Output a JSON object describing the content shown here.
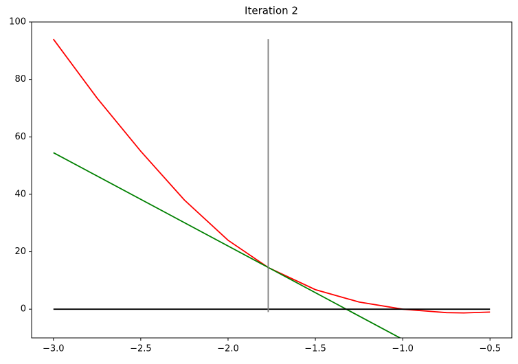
{
  "chart_data": {
    "type": "line",
    "title": "Iteration 2",
    "series": [
      {
        "color": "#ff0000",
        "x": [
          -3.0,
          -2.75,
          -2.5,
          -2.25,
          -2.0,
          -1.77,
          -1.5,
          -1.25,
          -1.0,
          -0.75,
          -0.65,
          -0.5
        ],
        "values": [
          94,
          73.5,
          55,
          38,
          24,
          14.5,
          6.8,
          2.5,
          0,
          -1.2,
          -1.3,
          -1
        ]
      },
      {
        "color": "#008000",
        "x": [
          -3.0,
          -1.0
        ],
        "values": [
          54.5,
          -10.5
        ]
      },
      {
        "color": "#000000",
        "x": [
          -3.0,
          -0.5
        ],
        "values": [
          0,
          0
        ]
      },
      {
        "color": "#808080",
        "x": [
          -1.77,
          -1.77
        ],
        "values": [
          -1,
          94
        ]
      }
    ],
    "xlim": [
      -3.125,
      -0.375
    ],
    "ylim": [
      -10,
      100
    ],
    "xticks": [
      {
        "value": -3.0,
        "label": "−3.0"
      },
      {
        "value": -2.5,
        "label": "−2.5"
      },
      {
        "value": -2.0,
        "label": "−2.0"
      },
      {
        "value": -1.5,
        "label": "−1.5"
      },
      {
        "value": -1.0,
        "label": "−1.0"
      },
      {
        "value": -0.5,
        "label": "−0.5"
      }
    ],
    "yticks": [
      0,
      20,
      40,
      60,
      80,
      100
    ]
  }
}
